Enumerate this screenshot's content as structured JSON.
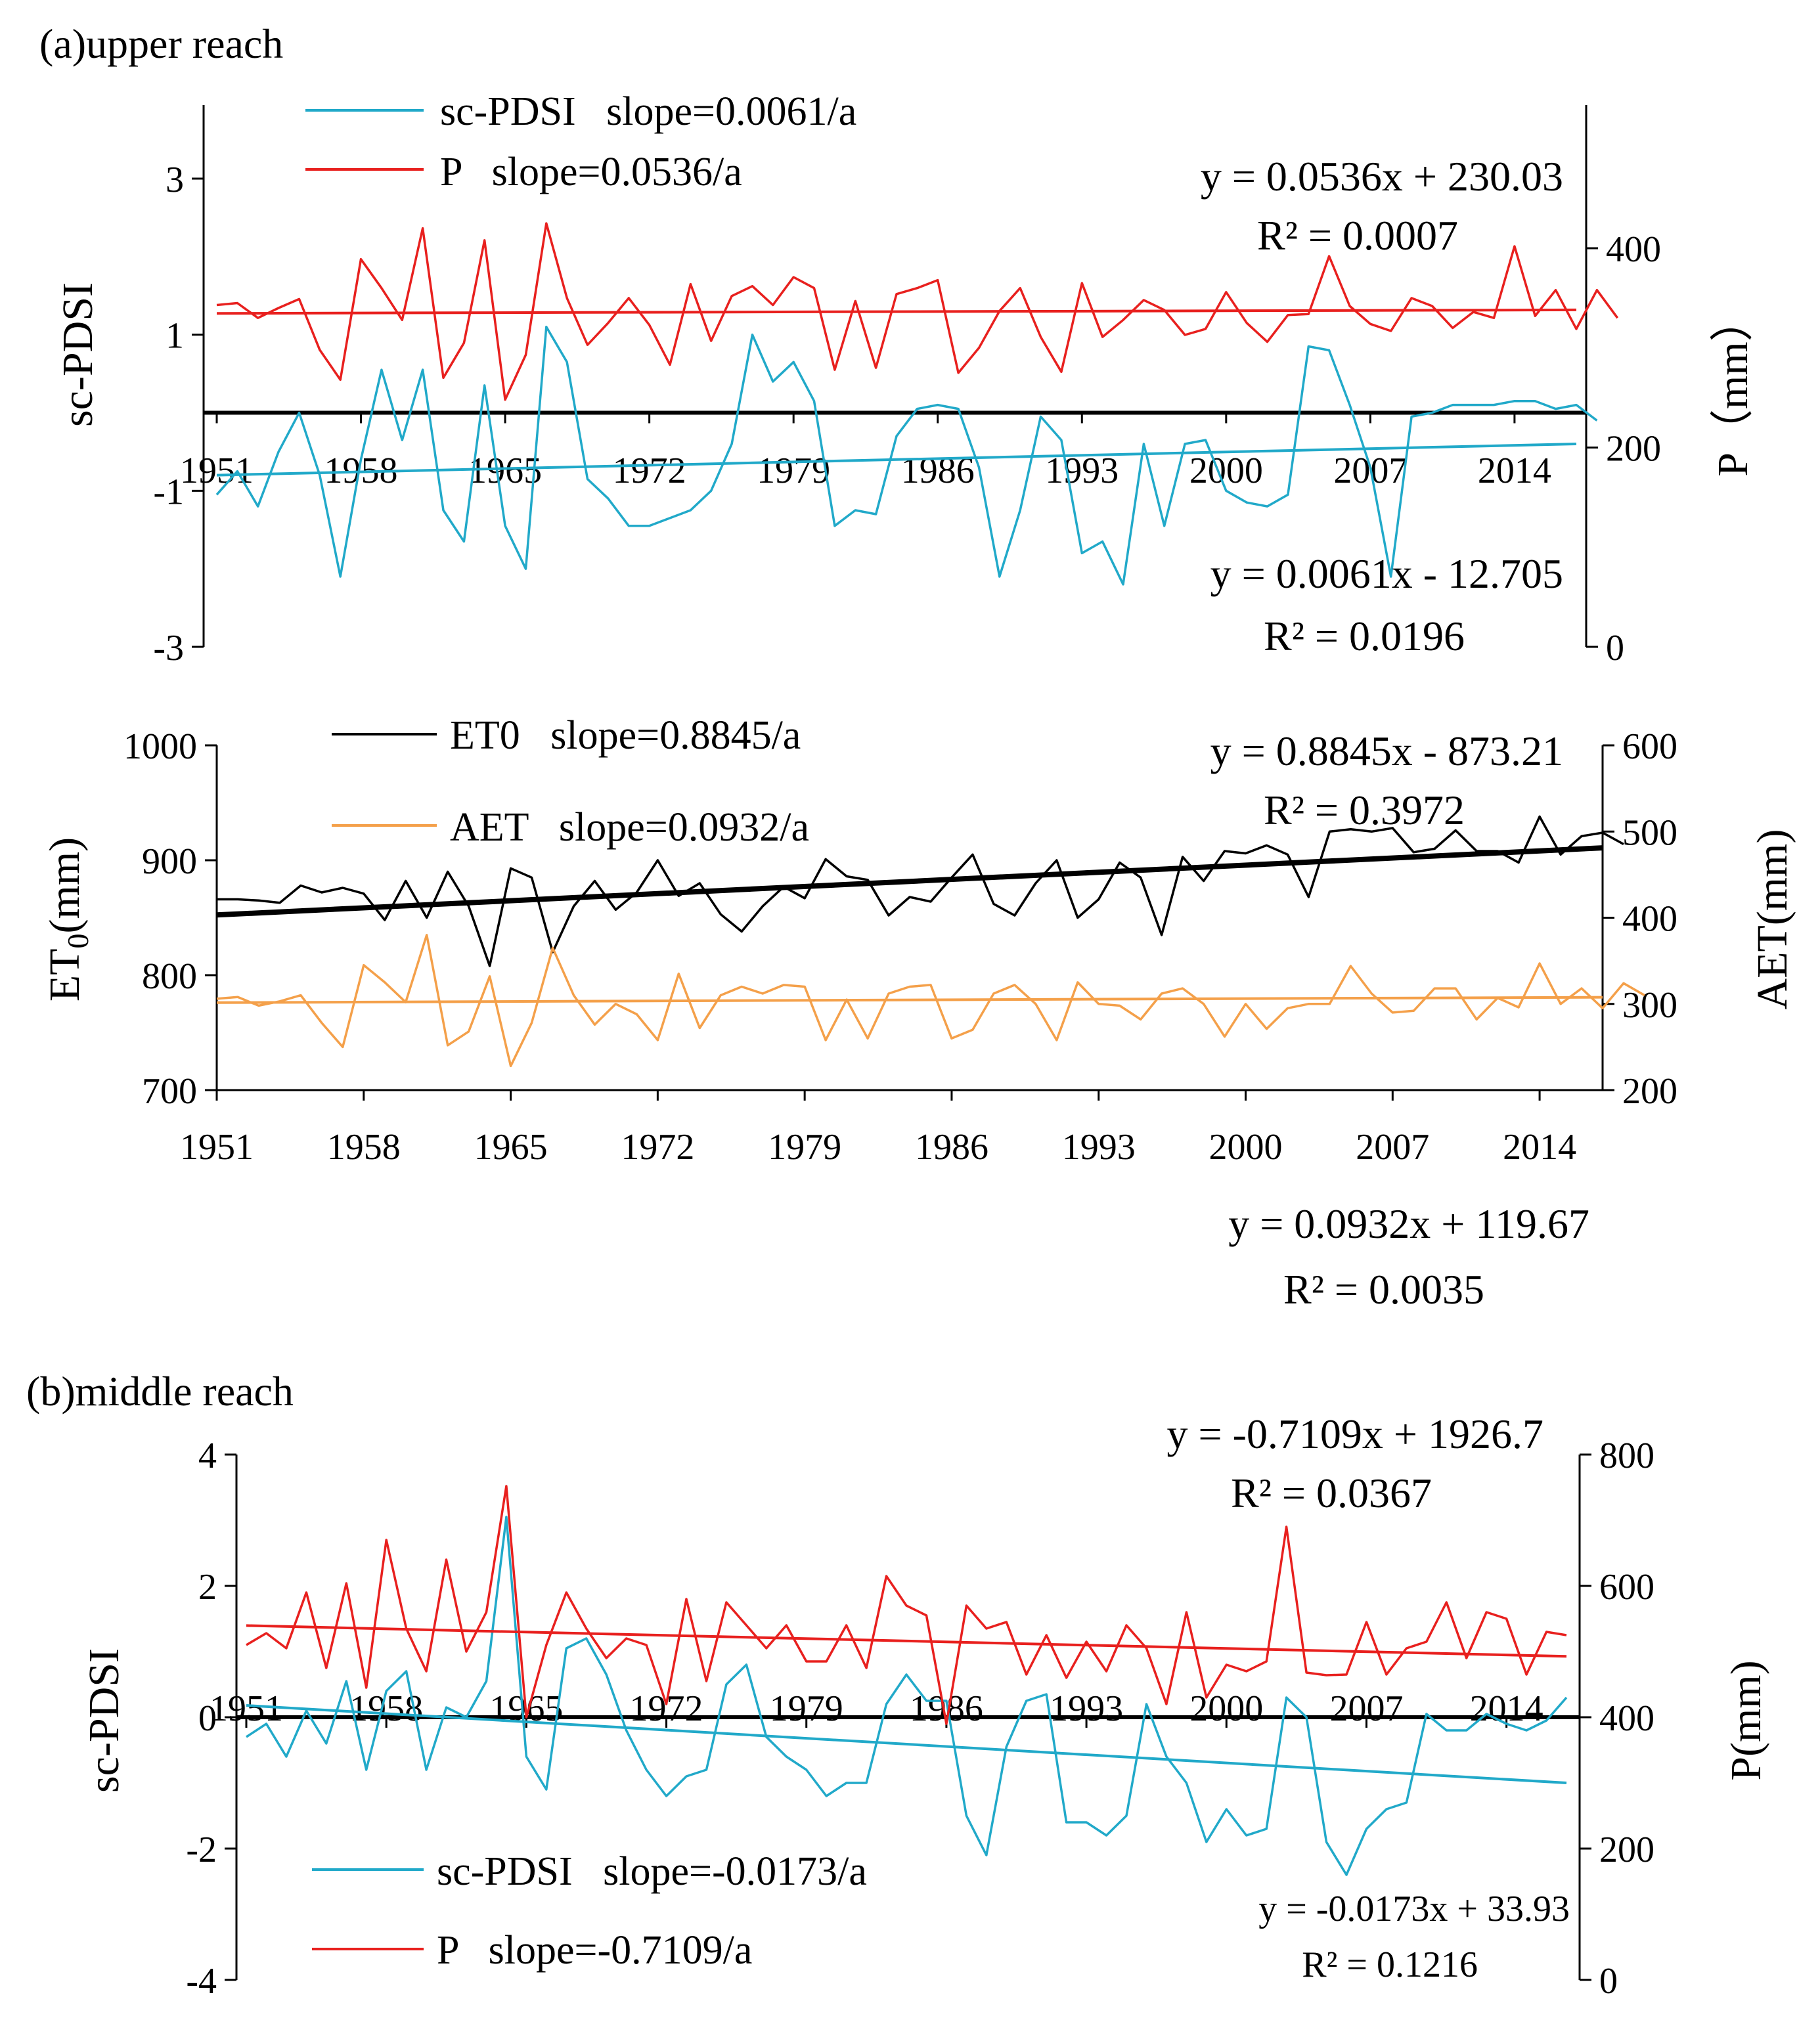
{
  "chart_data": [
    {
      "type": "line",
      "panel": "a-top",
      "title": "(a)upper reach",
      "left_axis": {
        "label": "sc-PDSI",
        "ylim": [
          -3,
          3
        ],
        "ticks": [
          "3",
          "1",
          "-1",
          "-3"
        ],
        "tick_values": [
          3,
          1,
          -1,
          -3
        ],
        "top": 4
      },
      "right_axis": {
        "label": "P（mm）",
        "ylim": [
          0,
          400
        ],
        "ticks": [
          "400",
          "200",
          "0"
        ],
        "tick_values": [
          400,
          200,
          0
        ],
        "top": 460
      },
      "x_ticks": [
        "1951",
        "1958",
        "1965",
        "1972",
        "1979",
        "1986",
        "1993",
        "2000",
        "2007",
        "2014"
      ],
      "x_range": [
        1951,
        2017
      ],
      "series": [
        {
          "name": "sc-PDSI",
          "legend": "sc-PDSI   slope=0.0061/a",
          "axis": "left",
          "color": "#21a9c9",
          "x_start": 1951,
          "values": [
            -1.05,
            -0.75,
            -1.2,
            -0.5,
            0.0,
            -0.8,
            -2.1,
            -0.6,
            0.55,
            -0.35,
            0.55,
            -1.25,
            -1.65,
            0.35,
            -1.45,
            -2.0,
            1.1,
            0.65,
            -0.85,
            -1.1,
            -1.45,
            -1.45,
            -1.35,
            -1.25,
            -1.0,
            -0.4,
            1.0,
            0.4,
            0.65,
            0.15,
            -1.45,
            -1.25,
            -1.3,
            -0.3,
            0.05,
            0.1,
            0.05,
            -0.7,
            -2.1,
            -1.25,
            -0.05,
            -0.35,
            -1.8,
            -1.65,
            -2.2,
            -0.4,
            -1.45,
            -0.4,
            -0.35,
            -1.0,
            -1.15,
            -1.2,
            -1.05,
            0.85,
            0.8,
            0.1,
            -0.7,
            -2.1,
            -0.05,
            0.0,
            0.1,
            0.1,
            0.1,
            0.15,
            0.15,
            0.05,
            0.1,
            -0.1
          ]
        },
        {
          "name": "P",
          "legend": "P   slope=0.0536/a",
          "axis": "right",
          "color": "#e8201e",
          "x_start": 1951,
          "values": [
            343,
            345,
            330,
            340,
            349,
            298,
            268,
            389,
            360,
            328,
            420,
            270,
            305,
            408,
            248,
            293,
            425,
            350,
            303,
            325,
            350,
            323,
            283,
            364,
            307,
            352,
            362,
            343,
            371,
            360,
            278,
            347,
            280,
            354,
            360,
            368,
            275,
            300,
            337,
            360,
            311,
            276,
            365,
            311,
            328,
            348,
            338,
            313,
            319,
            356,
            325,
            306,
            333,
            334,
            392,
            342,
            324,
            317,
            350,
            342,
            320,
            336,
            330,
            402,
            332,
            358,
            319,
            358,
            330
          ]
        },
        {
          "name": "P trend",
          "axis": "right",
          "color": "#e8201e",
          "x": [
            1951,
            2017
          ],
          "values": [
            334.6,
            338.1
          ]
        },
        {
          "name": "sc-PDSI trend",
          "axis": "left",
          "color": "#21a9c9",
          "x": [
            1951,
            2017
          ],
          "values": [
            -0.8,
            -0.4
          ]
        }
      ],
      "reference_line": {
        "axis": "left",
        "value": 0,
        "color": "#000000"
      },
      "annotations": [
        {
          "text": "y = 0.0536x + 230.03"
        },
        {
          "text": "R² = 0.0007"
        },
        {
          "text": "y = 0.0061x - 12.705"
        },
        {
          "text": "R² = 0.0196"
        }
      ]
    },
    {
      "type": "line",
      "panel": "a-bottom",
      "left_axis": {
        "label": "ET0(mm)",
        "label_main": "ET",
        "label_sub": "0",
        "label_tail": "(mm)",
        "ylim": [
          700,
          1000
        ],
        "ticks": [
          "1000",
          "900",
          "800",
          "700"
        ],
        "tick_values": [
          1000,
          900,
          800,
          700
        ]
      },
      "right_axis": {
        "label": "AET(mm)",
        "ylim": [
          200,
          600
        ],
        "ticks": [
          "600",
          "500",
          "400",
          "300",
          "200"
        ],
        "tick_values": [
          600,
          500,
          400,
          300,
          200
        ]
      },
      "x_ticks": [
        "1951",
        "1958",
        "1965",
        "1972",
        "1979",
        "1986",
        "1993",
        "2000",
        "2007",
        "2014"
      ],
      "x_range": [
        1951,
        2017
      ],
      "series": [
        {
          "name": "ET0",
          "legend": "ET0   slope=0.8845/a",
          "axis": "left",
          "color": "#000000",
          "x_start": 1951,
          "values": [
            866,
            866,
            865,
            863,
            878,
            872,
            876,
            871,
            848,
            882,
            850,
            890,
            860,
            808,
            893,
            885,
            820,
            860,
            882,
            857,
            872,
            900,
            869,
            880,
            853,
            838,
            860,
            877,
            867,
            901,
            886,
            883,
            852,
            868,
            864,
            885,
            905,
            862,
            852,
            880,
            900,
            850,
            866,
            898,
            885,
            835,
            903,
            882,
            908,
            906,
            913,
            905,
            868,
            925,
            927,
            925,
            928,
            907,
            910,
            926,
            908,
            908,
            898,
            938,
            905,
            921,
            924,
            914
          ]
        },
        {
          "name": "AET",
          "legend": "AET   slope=0.0932/a",
          "axis": "right",
          "color": "#f4a04a",
          "x_start": 1951,
          "values": [
            306,
            308,
            298,
            303,
            310,
            278,
            250,
            345,
            325,
            302,
            380,
            252,
            268,
            332,
            228,
            278,
            365,
            310,
            276,
            300,
            288,
            258,
            335,
            272,
            310,
            320,
            312,
            322,
            320,
            258,
            305,
            260,
            312,
            320,
            322,
            260,
            270,
            312,
            322,
            300,
            258,
            325,
            300,
            298,
            282,
            312,
            318,
            300,
            262,
            300,
            271,
            295,
            300,
            300,
            344,
            312,
            290,
            292,
            318,
            318,
            282,
            307,
            296,
            347,
            300,
            318,
            295,
            324,
            310
          ]
        },
        {
          "name": "ET0 trend",
          "axis": "left",
          "color": "#000000",
          "x": [
            1951,
            2017
          ],
          "values": [
            852.4,
            910.8
          ]
        },
        {
          "name": "AET trend",
          "axis": "right",
          "color": "#f4a04a",
          "x": [
            1951,
            2017
          ],
          "values": [
            301.5,
            307.7
          ]
        }
      ],
      "annotations": [
        {
          "text": "y = 0.8845x - 873.21"
        },
        {
          "text": "R² = 0.3972"
        },
        {
          "text": "y = 0.0932x + 119.67"
        },
        {
          "text": "R² = 0.0035"
        }
      ]
    },
    {
      "type": "line",
      "panel": "b",
      "title": "(b)middle reach",
      "left_axis": {
        "label": "sc-PDSI",
        "ylim": [
          -4,
          4
        ],
        "ticks": [
          "4",
          "2",
          "0",
          "-2",
          "-4"
        ],
        "tick_values": [
          4,
          2,
          0,
          -2,
          -4
        ]
      },
      "right_axis": {
        "label": "P(mm)",
        "ylim": [
          0,
          800
        ],
        "ticks": [
          "800",
          "600",
          "400",
          "200",
          "0"
        ],
        "tick_values": [
          800,
          600,
          400,
          200,
          0
        ]
      },
      "x_ticks": [
        "1951",
        "1958",
        "1965",
        "1972",
        "1979",
        "1986",
        "1993",
        "2000",
        "2007",
        "2014"
      ],
      "x_range": [
        1951,
        2017
      ],
      "series": [
        {
          "name": "sc-PDSI",
          "legend": "sc-PDSI   slope=-0.0173/a",
          "axis": "left",
          "color": "#21a9c9",
          "x_start": 1951,
          "values": [
            -0.3,
            -0.1,
            -0.6,
            0.1,
            -0.4,
            0.55,
            -0.8,
            0.4,
            0.7,
            -0.8,
            0.15,
            0.0,
            0.55,
            3.05,
            -0.6,
            -1.1,
            1.05,
            1.2,
            0.65,
            -0.2,
            -0.8,
            -1.2,
            -0.9,
            -0.8,
            0.5,
            0.8,
            -0.3,
            -0.6,
            -0.8,
            -1.2,
            -1.0,
            -1.0,
            0.2,
            0.65,
            0.25,
            0.25,
            -1.5,
            -2.1,
            -0.45,
            0.25,
            0.35,
            -1.6,
            -1.6,
            -1.8,
            -1.5,
            0.2,
            -0.6,
            -1.0,
            -1.9,
            -1.4,
            -1.8,
            -1.7,
            0.3,
            0.0,
            -1.9,
            -2.4,
            -1.7,
            -1.4,
            -1.3,
            0.05,
            -0.2,
            -0.2,
            0.05,
            -0.1,
            -0.2,
            -0.05,
            0.3
          ]
        },
        {
          "name": "P",
          "legend": "P   slope=-0.7109/a",
          "axis": "right",
          "color": "#e8201e",
          "x_start": 1951,
          "values": [
            510,
            528,
            505,
            590,
            475,
            604,
            445,
            670,
            535,
            470,
            640,
            500,
            560,
            752,
            400,
            510,
            590,
            535,
            490,
            520,
            510,
            420,
            580,
            455,
            575,
            540,
            505,
            540,
            485,
            485,
            540,
            475,
            615,
            570,
            555,
            390,
            570,
            535,
            545,
            465,
            525,
            460,
            515,
            470,
            540,
            505,
            420,
            560,
            430,
            480,
            470,
            485,
            690,
            468,
            464,
            465,
            545,
            465,
            505,
            515,
            575,
            490,
            560,
            550,
            465,
            530,
            525
          ]
        },
        {
          "name": "P trend",
          "axis": "right",
          "color": "#e8201e",
          "x": [
            1951,
            2017
          ],
          "values": [
            539.6,
            492.7
          ]
        },
        {
          "name": "sc-PDSI trend",
          "axis": "left",
          "color": "#21a9c9",
          "x": [
            1951,
            2017
          ],
          "values": [
            0.18,
            -1.0
          ]
        }
      ],
      "reference_line": {
        "axis": "left",
        "value": 0,
        "color": "#000000"
      },
      "annotations": [
        {
          "text": "y = -0.7109x + 1926.7"
        },
        {
          "text": "R² = 0.0367"
        },
        {
          "text": "y = -0.0173x + 33.93"
        },
        {
          "text": "R² = 0.1216"
        }
      ]
    }
  ]
}
